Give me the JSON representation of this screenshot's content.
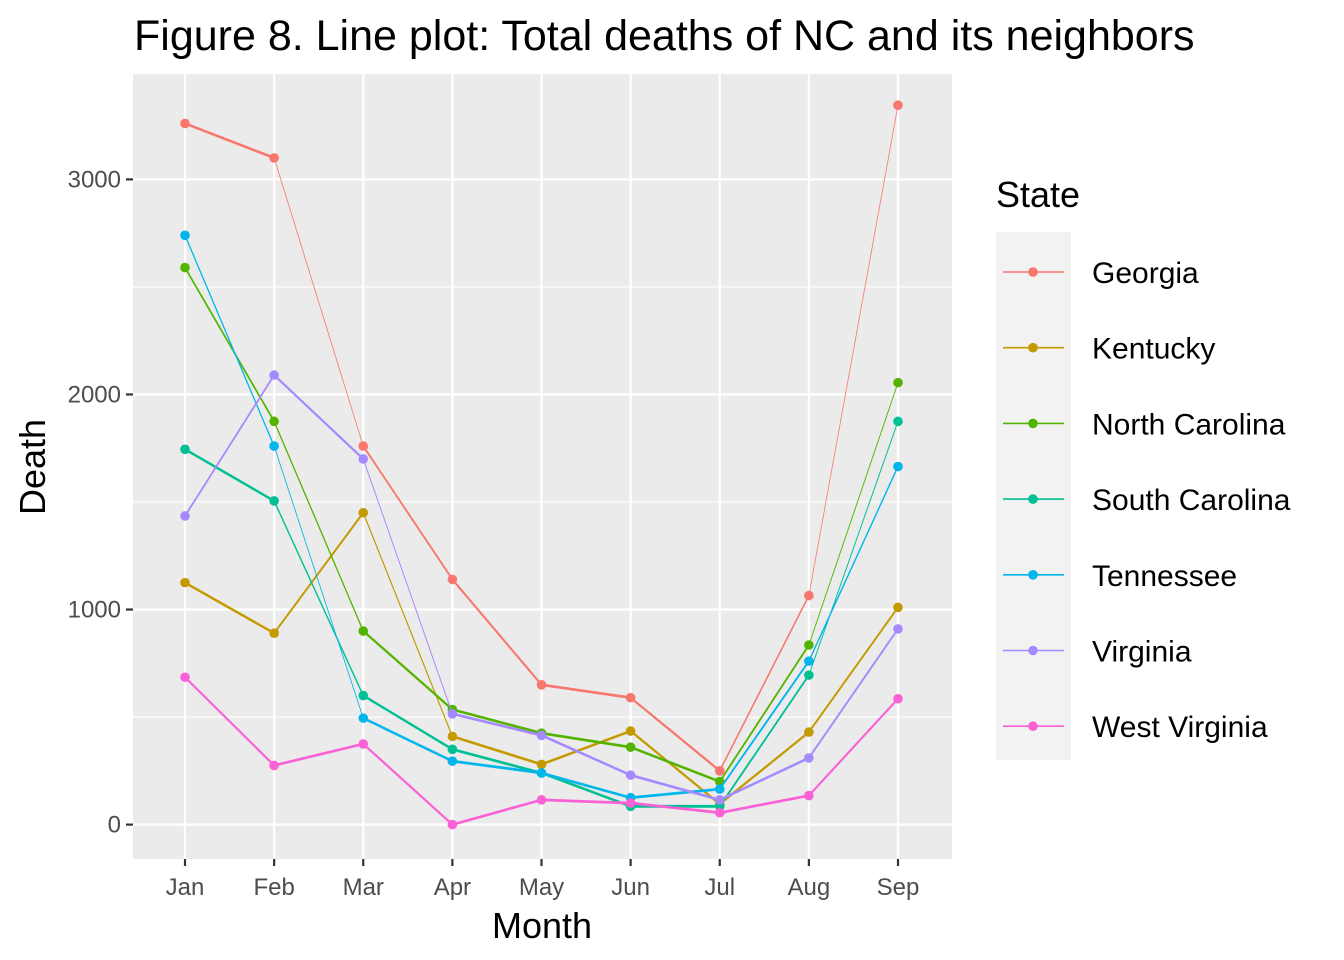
{
  "chart_data": {
    "type": "line",
    "title": "Figure 8. Line plot: Total deaths of NC and its neighbors",
    "xlabel": "Month",
    "ylabel": "Death",
    "categories": [
      "Jan",
      "Feb",
      "Mar",
      "Apr",
      "May",
      "Jun",
      "Jul",
      "Aug",
      "Sep"
    ],
    "yticks": [
      0,
      1000,
      2000,
      3000
    ],
    "ylim": [
      -160,
      3490
    ],
    "grid": true,
    "legend": {
      "title": "State",
      "position": "right"
    },
    "series": [
      {
        "name": "Georgia",
        "color": "#F8766D",
        "values": [
          3260,
          3100,
          1760,
          1140,
          650,
          590,
          250,
          1065,
          3345
        ]
      },
      {
        "name": "Kentucky",
        "color": "#C49A00",
        "values": [
          1125,
          890,
          1450,
          410,
          280,
          435,
          95,
          430,
          1010
        ]
      },
      {
        "name": "North Carolina",
        "color": "#53B400",
        "values": [
          2590,
          1875,
          900,
          535,
          425,
          360,
          200,
          835,
          2055
        ]
      },
      {
        "name": "South Carolina",
        "color": "#00C094",
        "values": [
          1745,
          1505,
          600,
          350,
          240,
          85,
          85,
          695,
          1875
        ]
      },
      {
        "name": "Tennessee",
        "color": "#00B6EB",
        "values": [
          2740,
          1760,
          495,
          295,
          240,
          125,
          165,
          760,
          1665
        ]
      },
      {
        "name": "Virginia",
        "color": "#A58AFF",
        "values": [
          1435,
          2090,
          1700,
          515,
          415,
          230,
          115,
          310,
          910
        ]
      },
      {
        "name": "West Virginia",
        "color": "#FB61D7",
        "values": [
          685,
          275,
          375,
          0,
          115,
          100,
          55,
          135,
          585
        ]
      }
    ]
  }
}
